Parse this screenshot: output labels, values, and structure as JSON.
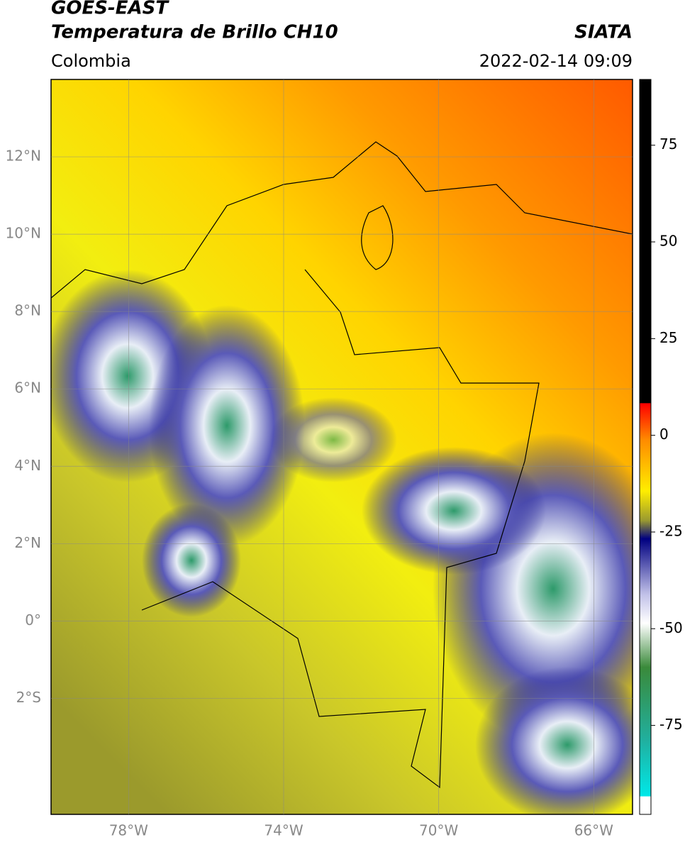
{
  "header": {
    "title": "GOES-EAST",
    "subtitle": "Temperatura de Brillo CH10",
    "source": "SIATA",
    "region": "Colombia",
    "datetime": "2022-02-14 09:09"
  },
  "map": {
    "xlim": [
      -80,
      -65
    ],
    "ylim": [
      -5,
      14
    ],
    "xticks": [
      {
        "value": -78,
        "label": "78°W"
      },
      {
        "value": -74,
        "label": "74°W"
      },
      {
        "value": -70,
        "label": "70°W"
      },
      {
        "value": -66,
        "label": "66°W"
      }
    ],
    "yticks": [
      {
        "value": 12,
        "label": "12°N"
      },
      {
        "value": 10,
        "label": "10°N"
      },
      {
        "value": 8,
        "label": "8°N"
      },
      {
        "value": 6,
        "label": "6°N"
      },
      {
        "value": 4,
        "label": "4°N"
      },
      {
        "value": 2,
        "label": "2°N"
      },
      {
        "value": 0,
        "label": "0°"
      },
      {
        "value": -2,
        "label": "2°S"
      }
    ],
    "grid": true
  },
  "colorbar": {
    "lim": [
      -98,
      92
    ],
    "ticks": [
      75,
      50,
      25,
      0,
      -25,
      -50,
      -75
    ]
  }
}
